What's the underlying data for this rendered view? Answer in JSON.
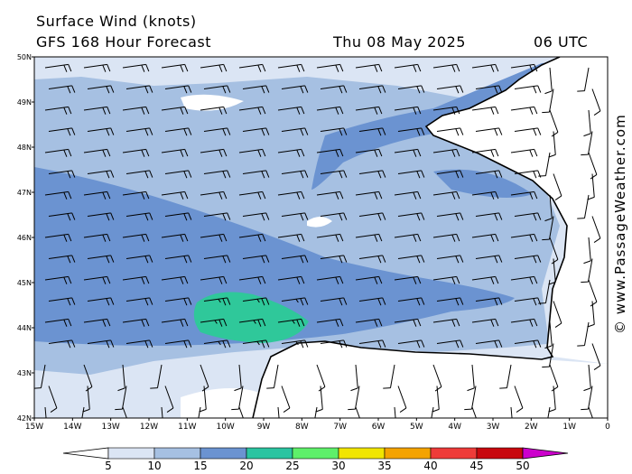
{
  "header": {
    "title": "Surface Wind (knots)",
    "subtitle": "GFS 168 Hour Forecast",
    "valid_date": "Thu 08 May 2025",
    "valid_time": "06 UTC"
  },
  "credit": "© www.PassageWeather.com",
  "map": {
    "lat_labels": [
      "50N",
      "49N",
      "48N",
      "47N",
      "46N",
      "45N",
      "44N",
      "43N",
      "42N"
    ],
    "lon_labels": [
      "15W",
      "14W",
      "13W",
      "12W",
      "11W",
      "10W",
      "9W",
      "8W",
      "7W",
      "6W",
      "5W",
      "4W",
      "3W",
      "2W",
      "1W",
      "0"
    ],
    "wind_speed_bands": [
      {
        "range": "<5",
        "color": "#ffffff"
      },
      {
        "range": "5-10",
        "color": "#dbe5f4"
      },
      {
        "range": "10-15",
        "color": "#a6c0e2"
      },
      {
        "range": "15-20",
        "color": "#6b93d1"
      },
      {
        "range": "20-25",
        "color": "#3ec79a"
      }
    ],
    "land_color": "#ffffff",
    "coast_color": "#000000",
    "barb_color": "#000000"
  },
  "legend": {
    "labels": [
      "5",
      "10",
      "15",
      "20",
      "25",
      "30",
      "35",
      "40",
      "45",
      "50"
    ],
    "colors": [
      "#dbe5f4",
      "#a6c0e2",
      "#6b93d1",
      "#2bc4a1",
      "#5ef06a",
      "#f1e500",
      "#f4a300",
      "#ee3b39",
      "#c8080e",
      "#b800c0"
    ],
    "low_color": "#ffffff",
    "high_color": "#cc00cc"
  }
}
